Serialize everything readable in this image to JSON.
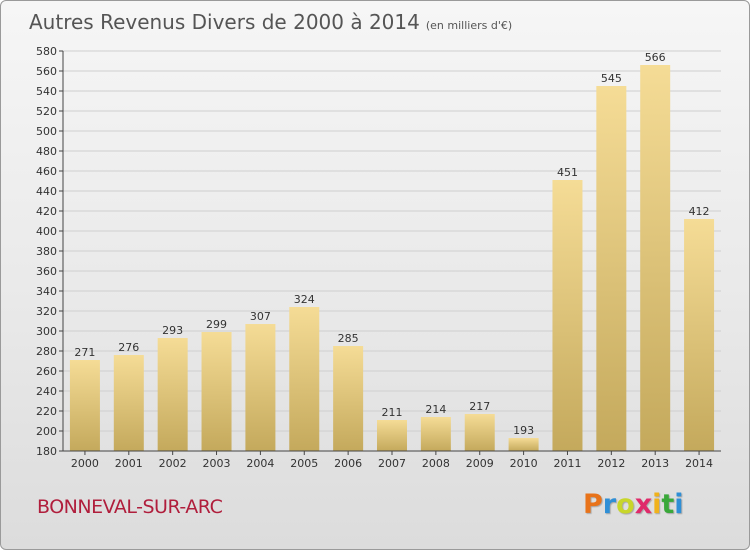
{
  "header": {
    "title": "Autres Revenus Divers de 2000 à 2014",
    "unit": "(en milliers d'€)"
  },
  "footer": {
    "commune": "BONNEVAL-SUR-ARC",
    "logo": "Proxiti",
    "logo_colors": [
      "#e8731a",
      "#2f8fd6",
      "#c8d62a",
      "#e02a6a",
      "#f0b21c",
      "#3aa83a",
      "#2f8fd6"
    ]
  },
  "chart_data": {
    "type": "bar",
    "categories": [
      "2000",
      "2001",
      "2002",
      "2003",
      "2004",
      "2005",
      "2006",
      "2007",
      "2008",
      "2009",
      "2010",
      "2011",
      "2012",
      "2013",
      "2014"
    ],
    "values": [
      271,
      276,
      293,
      299,
      307,
      324,
      285,
      211,
      214,
      217,
      193,
      451,
      545,
      566,
      412
    ],
    "ylim": [
      180,
      580
    ],
    "yticks": [
      180,
      200,
      220,
      240,
      260,
      280,
      300,
      320,
      340,
      360,
      380,
      400,
      420,
      440,
      460,
      480,
      500,
      520,
      540,
      560,
      580
    ],
    "grid": true,
    "bar_color_top": "#f5dc96",
    "bar_color_bottom": "#c4a95c"
  }
}
